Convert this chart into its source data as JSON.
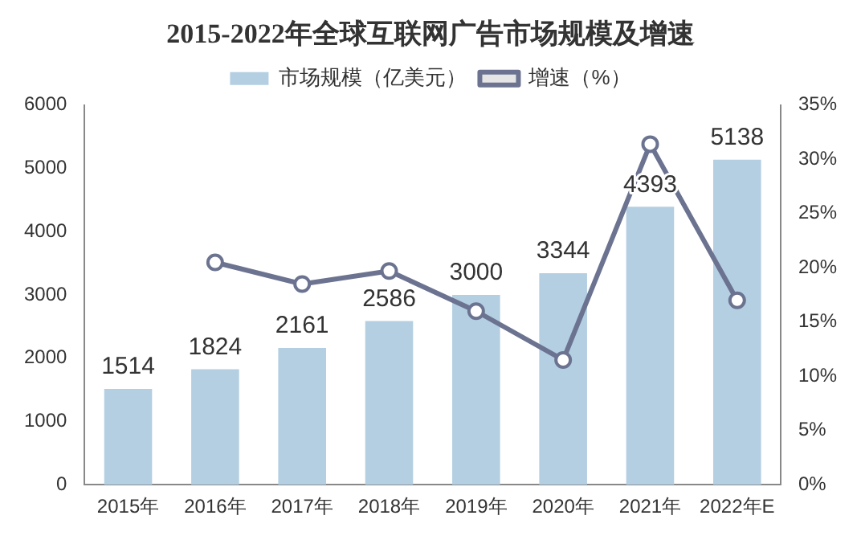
{
  "chart_data": {
    "type": "bar",
    "title": "2015-2022年全球互联网广告市场规模及增速",
    "categories": [
      "2015年",
      "2016年",
      "2017年",
      "2018年",
      "2019年",
      "2020年",
      "2021年",
      "2022年E"
    ],
    "series": [
      {
        "name": "市场规模（亿美元）",
        "color": "#b4cfe2",
        "values": [
          1514,
          1824,
          2161,
          2586,
          3000,
          3344,
          4393,
          5138
        ],
        "value_labels": [
          "1514",
          "1824",
          "2161",
          "2586",
          "3000",
          "3344",
          "4393",
          "5138"
        ]
      },
      {
        "name": "增速（%）",
        "type": "line",
        "axis": "y2",
        "color": "#6b7390",
        "values": [
          null,
          20.5,
          18.5,
          19.7,
          16.0,
          11.5,
          31.4,
          17.0
        ]
      }
    ],
    "ylim": [
      0,
      6000
    ],
    "yticks": [
      0,
      1000,
      2000,
      3000,
      4000,
      5000,
      6000
    ],
    "y2lim": [
      0,
      35
    ],
    "y2ticks": [
      {
        "value": 0,
        "label": "0%"
      },
      {
        "value": 5,
        "label": "5%"
      },
      {
        "value": 10,
        "label": "10%"
      },
      {
        "value": 15,
        "label": "15%"
      },
      {
        "value": 20,
        "label": "20%"
      },
      {
        "value": 25,
        "label": "25%"
      },
      {
        "value": 30,
        "label": "30%"
      },
      {
        "value": 35,
        "label": "35%"
      }
    ],
    "legend": "top",
    "grid": false,
    "marker": "circle",
    "line_style": "solid"
  }
}
